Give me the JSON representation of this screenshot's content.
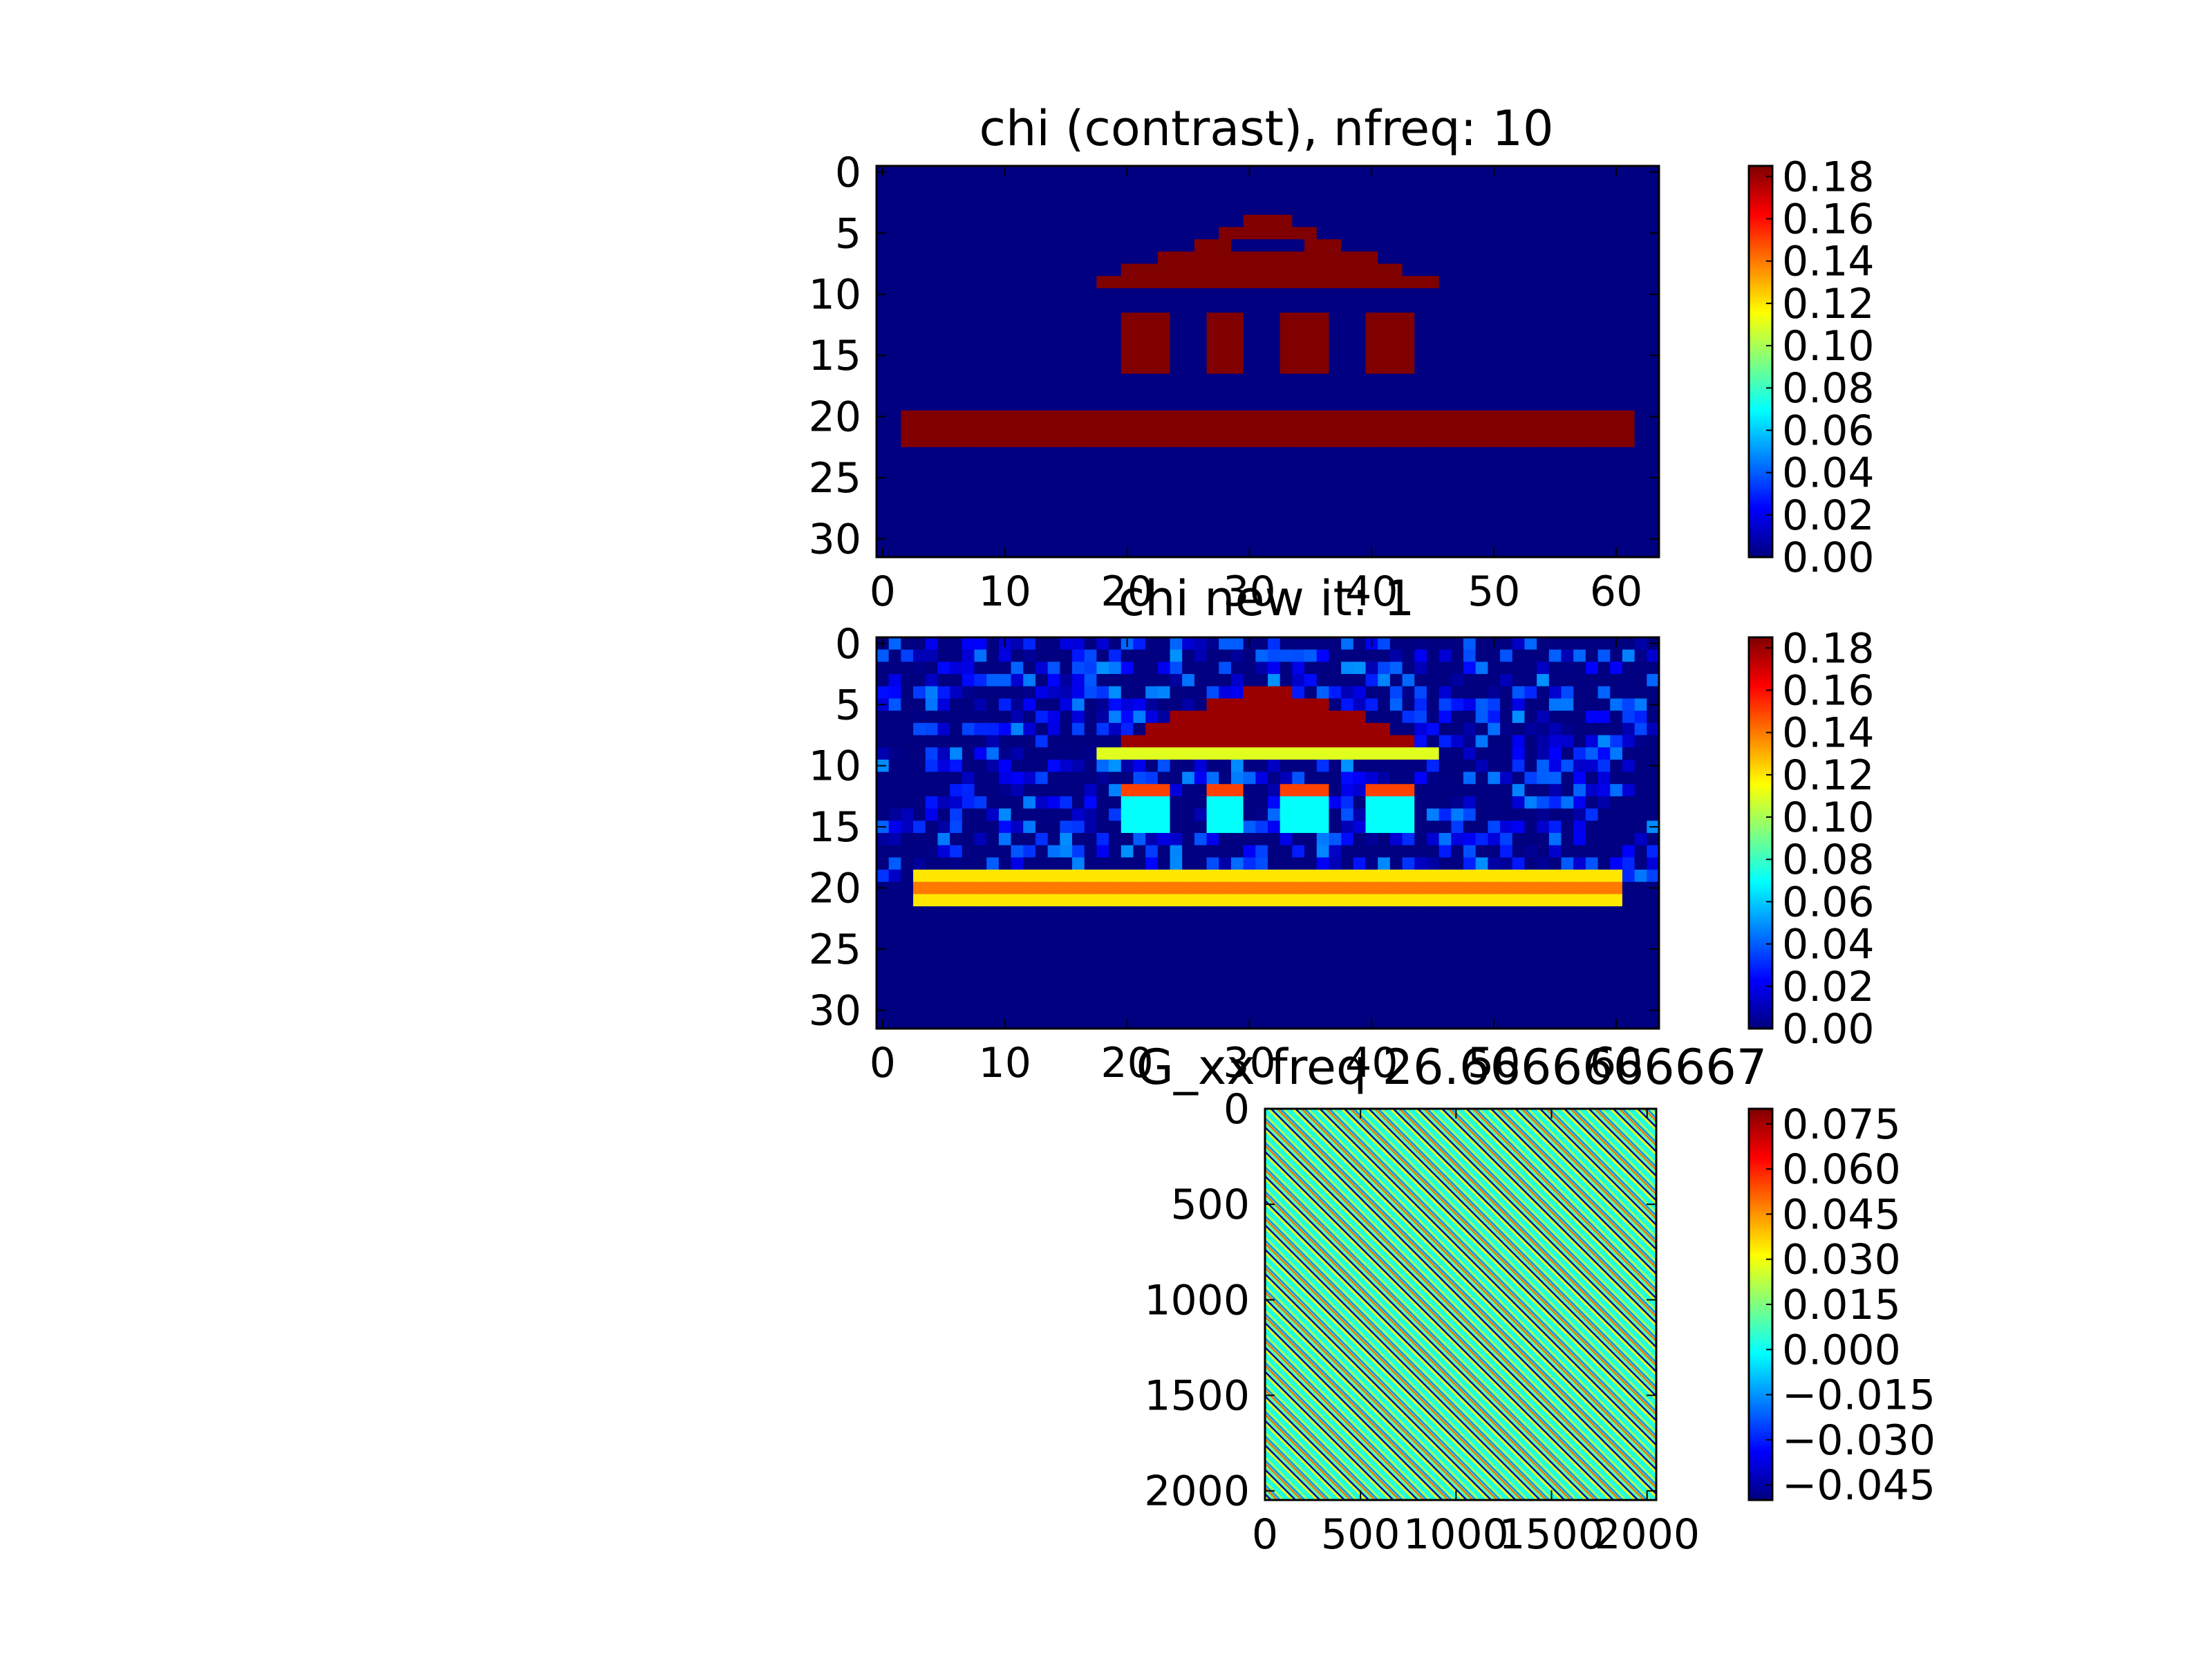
{
  "chart_data": [
    {
      "type": "heatmap",
      "title": "chi (contrast), nfreq: 10",
      "colormap": "jet",
      "grid_shape": [
        32,
        64
      ],
      "xlim": [
        -0.5,
        63.5
      ],
      "ylim": [
        31.5,
        -0.5
      ],
      "xticks": [
        0,
        10,
        20,
        30,
        40,
        50,
        60
      ],
      "yticks": [
        0,
        5,
        10,
        15,
        20,
        25,
        30
      ],
      "colorbar": {
        "min": 0.0,
        "max": 0.185,
        "ticks": [
          "0.00",
          "0.02",
          "0.04",
          "0.06",
          "0.08",
          "0.10",
          "0.12",
          "0.14",
          "0.16",
          "0.18"
        ]
      },
      "background_value": 0.0,
      "regions": [
        {
          "shape": "row_spans",
          "value": 0.185,
          "rows": [
            {
              "row": 4,
              "from": 30,
              "to": 33
            },
            {
              "row": 5,
              "from": 28,
              "to": 35
            },
            {
              "row": 6,
              "from": 26,
              "to": 28
            },
            {
              "row": 6,
              "from": 35,
              "to": 37
            },
            {
              "row": 7,
              "from": 23,
              "to": 40
            },
            {
              "row": 8,
              "from": 20,
              "to": 42
            },
            {
              "row": 9,
              "from": 18,
              "to": 45
            }
          ]
        },
        {
          "shape": "rect",
          "value": 0.185,
          "rows": [
            12,
            16
          ],
          "cols": [
            20,
            23
          ]
        },
        {
          "shape": "rect",
          "value": 0.185,
          "rows": [
            12,
            16
          ],
          "cols": [
            27,
            29
          ]
        },
        {
          "shape": "rect",
          "value": 0.185,
          "rows": [
            12,
            16
          ],
          "cols": [
            33,
            36
          ]
        },
        {
          "shape": "rect",
          "value": 0.185,
          "rows": [
            12,
            16
          ],
          "cols": [
            40,
            43
          ]
        },
        {
          "shape": "rect",
          "value": 0.185,
          "rows": [
            20,
            22
          ],
          "cols": [
            2,
            61
          ]
        }
      ]
    },
    {
      "type": "heatmap",
      "title": "chi new it: 1",
      "colormap": "jet",
      "grid_shape": [
        32,
        64
      ],
      "xlim": [
        -0.5,
        63.5
      ],
      "ylim": [
        31.5,
        -0.5
      ],
      "xticks": [
        0,
        10,
        20,
        30,
        40,
        50,
        60
      ],
      "yticks": [
        0,
        5,
        10,
        15,
        20,
        25,
        30
      ],
      "colorbar": {
        "min": 0.0,
        "max": 0.185,
        "ticks": [
          "0.00",
          "0.02",
          "0.04",
          "0.06",
          "0.08",
          "0.10",
          "0.12",
          "0.14",
          "0.16",
          "0.18"
        ]
      },
      "background_value": 0.0,
      "noise_region_rows": [
        0,
        19
      ],
      "noise_max": 0.05,
      "regions": [
        {
          "shape": "row_spans",
          "value": 0.18,
          "rows": [
            {
              "row": 4,
              "from": 30,
              "to": 33
            },
            {
              "row": 5,
              "from": 27,
              "to": 36
            },
            {
              "row": 6,
              "from": 24,
              "to": 39
            },
            {
              "row": 7,
              "from": 22,
              "to": 41
            },
            {
              "row": 8,
              "from": 20,
              "to": 43
            }
          ]
        },
        {
          "shape": "row_spans",
          "value": 0.11,
          "rows": [
            {
              "row": 9,
              "from": 18,
              "to": 45
            }
          ]
        },
        {
          "shape": "rect",
          "value": 0.15,
          "rows": [
            12,
            12
          ],
          "cols": [
            20,
            23
          ]
        },
        {
          "shape": "rect",
          "value": 0.15,
          "rows": [
            12,
            12
          ],
          "cols": [
            27,
            29
          ]
        },
        {
          "shape": "rect",
          "value": 0.15,
          "rows": [
            12,
            12
          ],
          "cols": [
            33,
            36
          ]
        },
        {
          "shape": "rect",
          "value": 0.15,
          "rows": [
            12,
            12
          ],
          "cols": [
            40,
            43
          ]
        },
        {
          "shape": "rect",
          "value": 0.07,
          "rows": [
            13,
            15
          ],
          "cols": [
            20,
            23
          ]
        },
        {
          "shape": "rect",
          "value": 0.07,
          "rows": [
            13,
            15
          ],
          "cols": [
            27,
            29
          ]
        },
        {
          "shape": "rect",
          "value": 0.07,
          "rows": [
            13,
            15
          ],
          "cols": [
            33,
            36
          ]
        },
        {
          "shape": "rect",
          "value": 0.07,
          "rows": [
            13,
            15
          ],
          "cols": [
            40,
            43
          ]
        },
        {
          "shape": "rect",
          "value": 0.12,
          "rows": [
            19,
            19
          ],
          "cols": [
            3,
            60
          ]
        },
        {
          "shape": "rect",
          "value": 0.14,
          "rows": [
            20,
            20
          ],
          "cols": [
            3,
            60
          ]
        },
        {
          "shape": "rect",
          "value": 0.12,
          "rows": [
            21,
            21
          ],
          "cols": [
            3,
            60
          ]
        }
      ]
    },
    {
      "type": "heatmap",
      "title": "G_xx freq 26.6666666667",
      "colormap": "jet",
      "xlim": [
        0,
        2048
      ],
      "ylim": [
        2048,
        0
      ],
      "xticks": [
        0,
        500,
        1000,
        1500,
        2000
      ],
      "yticks": [
        0,
        500,
        1000,
        1500,
        2000
      ],
      "colorbar": {
        "min": -0.05,
        "max": 0.08,
        "ticks": [
          "−0.045",
          "−0.030",
          "−0.015",
          "0.000",
          "0.015",
          "0.030",
          "0.045",
          "0.060",
          "0.075"
        ]
      },
      "pattern": "diagonal_bands",
      "band_period": 64,
      "band_values": [
        0.0,
        0.03,
        -0.045,
        0.01,
        0.05,
        -0.015,
        0.02,
        0.0
      ]
    }
  ]
}
